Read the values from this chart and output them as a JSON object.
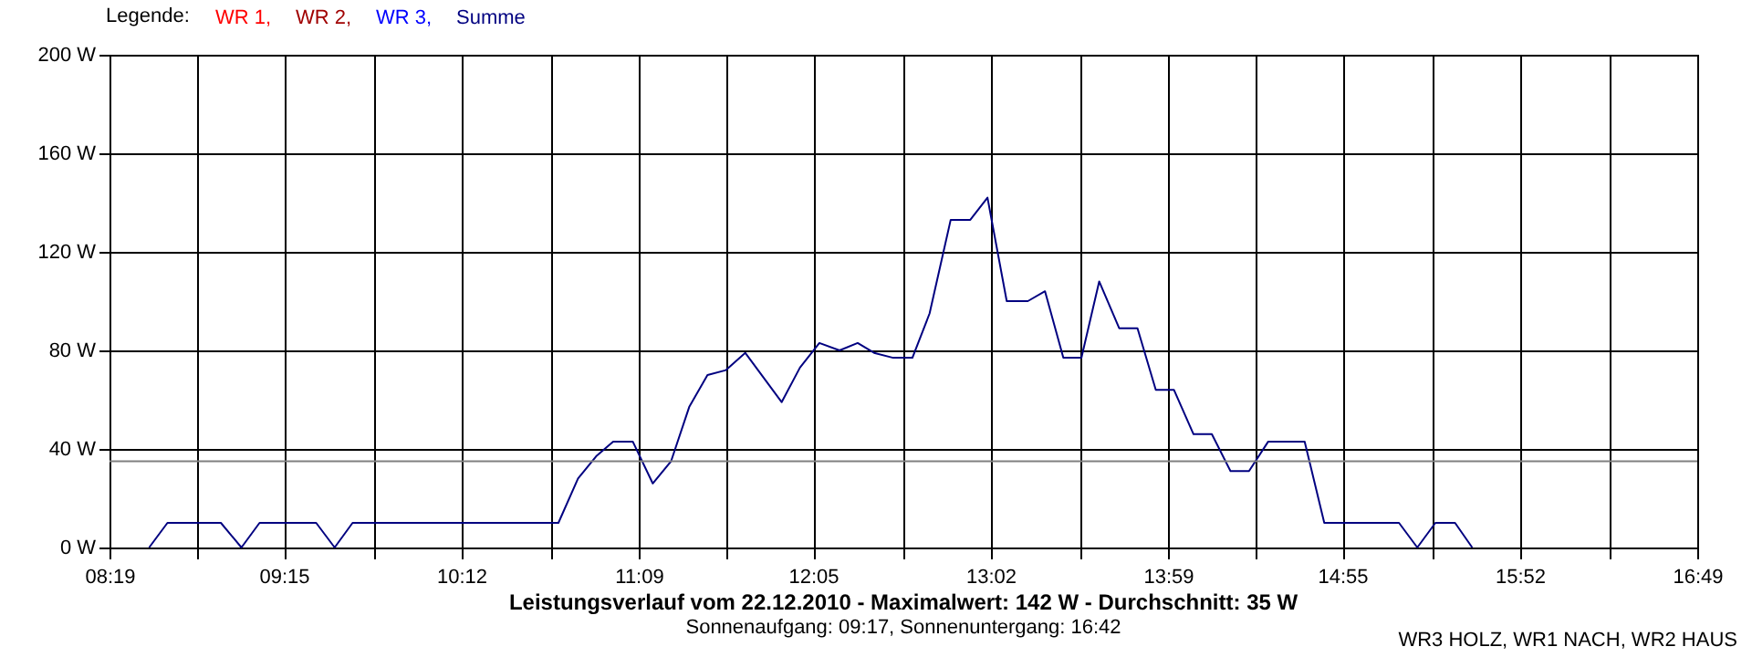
{
  "chart_data": {
    "type": "line",
    "title": "Leistungsverlauf vom 22.12.2010 - Maximalwert: 142 W - Durchschnitt: 35 W",
    "subtitle": "Sonnenaufgang: 09:17, Sonnenuntergang: 16:42",
    "legend_title": "Legende:",
    "annotations": [
      "WR3 HOLZ, WR1 NACH, WR2 HAUS"
    ],
    "x": [
      8.529,
      8.627,
      8.913,
      9.023,
      9.12,
      9.423,
      9.522,
      9.618,
      10.72,
      10.825,
      10.922,
      11.013,
      11.118,
      11.225,
      11.323,
      11.42,
      11.518,
      11.617,
      11.72,
      11.915,
      12.013,
      12.117,
      12.225,
      12.322,
      12.41,
      12.512,
      12.615,
      12.707,
      12.82,
      12.925,
      13.017,
      13.12,
      13.233,
      13.325,
      13.423,
      13.52,
      13.615,
      13.722,
      13.82,
      13.918,
      14.015,
      14.12,
      14.218,
      14.318,
      14.417,
      14.52,
      14.715,
      14.82,
      15.22,
      15.318,
      15.415,
      15.52,
      15.612
    ],
    "series": [
      {
        "name": "WR 1,",
        "color": "#ff0000",
        "values": [
          null,
          null,
          null,
          null,
          null,
          null,
          null,
          null,
          null,
          null,
          null,
          null,
          null,
          null,
          null,
          null,
          null,
          null,
          null,
          null,
          null,
          null,
          null,
          null,
          null,
          null,
          null,
          null,
          null,
          null,
          null,
          null,
          null,
          null,
          null,
          null,
          null,
          null,
          null,
          null,
          null,
          null,
          null,
          null,
          null,
          null,
          null,
          null,
          null,
          null,
          null,
          null,
          null
        ]
      },
      {
        "name": "WR 2,",
        "color": "#a00000",
        "values": [
          null,
          null,
          null,
          null,
          null,
          null,
          null,
          null,
          null,
          null,
          null,
          null,
          null,
          null,
          null,
          null,
          null,
          null,
          null,
          null,
          null,
          null,
          null,
          null,
          null,
          null,
          null,
          null,
          null,
          null,
          null,
          null,
          null,
          null,
          null,
          null,
          null,
          null,
          null,
          null,
          null,
          null,
          null,
          null,
          null,
          null,
          null,
          null,
          null,
          null,
          null,
          null,
          null
        ]
      },
      {
        "name": "WR 3,",
        "color": "#0000ff",
        "values": [
          null,
          null,
          null,
          null,
          null,
          null,
          null,
          null,
          null,
          null,
          null,
          null,
          null,
          null,
          null,
          null,
          null,
          null,
          null,
          null,
          null,
          null,
          null,
          null,
          null,
          null,
          null,
          null,
          null,
          null,
          null,
          null,
          null,
          null,
          null,
          null,
          null,
          null,
          null,
          null,
          null,
          null,
          null,
          null,
          null,
          null,
          null,
          null,
          null,
          null,
          null,
          null,
          null
        ]
      },
      {
        "name": "Summe",
        "color": "#000080",
        "values": [
          0,
          10,
          10,
          0,
          10,
          10,
          0,
          10,
          10,
          28,
          37,
          43,
          43,
          26,
          35,
          57,
          70,
          72,
          79,
          59,
          73,
          83,
          80,
          83,
          79,
          77,
          77,
          95,
          133,
          133,
          142,
          100,
          100,
          104,
          77,
          77,
          108,
          89,
          89,
          64,
          64,
          46,
          46,
          31,
          31,
          43,
          43,
          10,
          10,
          0,
          10,
          10,
          0
        ]
      }
    ],
    "xlim": [
      8.3167,
      16.8167
    ],
    "xticks": [
      {
        "value": 8.3167,
        "label": "08:19"
      },
      {
        "value": 8.7889,
        "label": null
      },
      {
        "value": 9.25,
        "label": "09:15"
      },
      {
        "value": 9.7333,
        "label": null
      },
      {
        "value": 10.2,
        "label": "10:12"
      },
      {
        "value": 10.6778,
        "label": null
      },
      {
        "value": 11.15,
        "label": "11:09"
      },
      {
        "value": 11.6222,
        "label": null
      },
      {
        "value": 12.0833,
        "label": "12:05"
      },
      {
        "value": 12.5667,
        "label": null
      },
      {
        "value": 13.0333,
        "label": "13:02"
      },
      {
        "value": 13.5111,
        "label": null
      },
      {
        "value": 13.9833,
        "label": "13:59"
      },
      {
        "value": 14.4556,
        "label": null
      },
      {
        "value": 14.9167,
        "label": "14:55"
      },
      {
        "value": 15.4,
        "label": null
      },
      {
        "value": 15.8667,
        "label": "15:52"
      },
      {
        "value": 16.3444,
        "label": null
      },
      {
        "value": 16.8167,
        "label": "16:49"
      }
    ],
    "ylim": [
      0,
      200
    ],
    "yticks": [
      {
        "value": 0,
        "label": "0 W"
      },
      {
        "value": 40,
        "label": "40 W"
      },
      {
        "value": 80,
        "label": "80 W"
      },
      {
        "value": 120,
        "label": "120 W"
      },
      {
        "value": 160,
        "label": "160 W"
      },
      {
        "value": 200,
        "label": "200 W"
      }
    ],
    "ref_lines": [
      {
        "axis": "y",
        "value": 35,
        "color": "#808080"
      }
    ],
    "grid": true,
    "legend": "top left",
    "marker": "none",
    "line_style": "solid"
  }
}
